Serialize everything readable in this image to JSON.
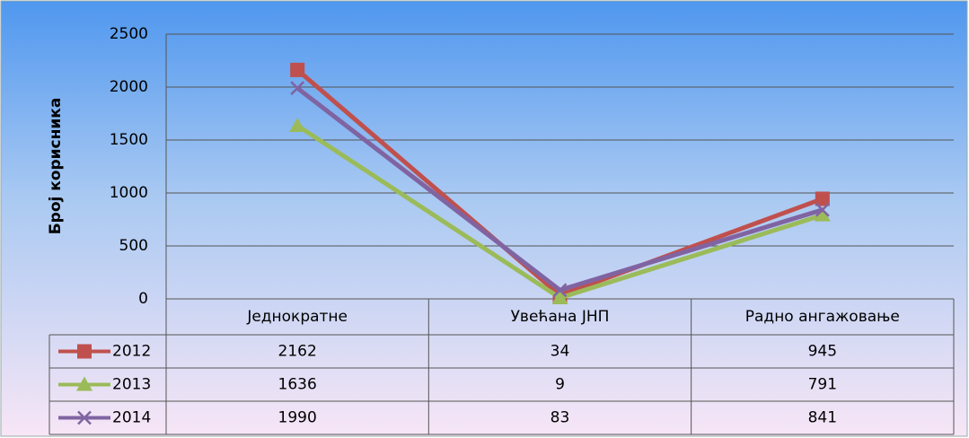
{
  "chart_data": {
    "type": "line",
    "ylabel": "Број корисника",
    "categories": [
      "Једнократне",
      "Увећана ЈНП",
      "Радно ангажовање"
    ],
    "series": [
      {
        "name": "2012",
        "color": "#c0504d",
        "marker": "square",
        "values": [
          2162,
          34,
          945
        ]
      },
      {
        "name": "2013",
        "color": "#9bbb59",
        "marker": "triangle",
        "values": [
          1636,
          9,
          791
        ]
      },
      {
        "name": "2014",
        "color": "#8064a2",
        "marker": "x",
        "values": [
          1990,
          83,
          841
        ]
      }
    ],
    "ylim": [
      0,
      2500
    ],
    "yticks": [
      0,
      500,
      1000,
      1500,
      2000,
      2500
    ],
    "grid": true,
    "data_table": true
  }
}
